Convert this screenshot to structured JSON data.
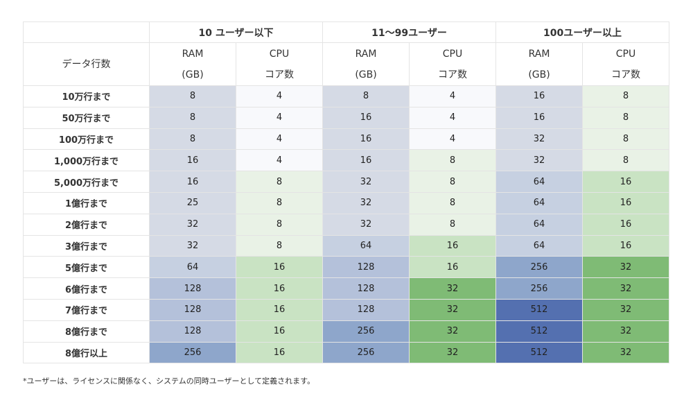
{
  "table": {
    "corner_label": "",
    "row_header_title": "データ行数",
    "groups": [
      "10 ユーザー以下",
      "11～99ユーザー",
      "100ユーザー以上"
    ],
    "ram_label": "RAM",
    "ram_unit": "(GB)",
    "cpu_label": "CPU",
    "cpu_unit": "コア数",
    "rows": [
      {
        "label": "10万行まで",
        "values": [
          "8",
          "4",
          "8",
          "4",
          "16",
          "8"
        ]
      },
      {
        "label": "50万行まで",
        "values": [
          "8",
          "4",
          "16",
          "4",
          "16",
          "8"
        ]
      },
      {
        "label": "100万行まで",
        "values": [
          "8",
          "4",
          "16",
          "4",
          "32",
          "8"
        ]
      },
      {
        "label": "1,000万行まで",
        "values": [
          "16",
          "4",
          "16",
          "8",
          "32",
          "8"
        ]
      },
      {
        "label": "5,000万行まで",
        "values": [
          "16",
          "8",
          "32",
          "8",
          "64",
          "16"
        ]
      },
      {
        "label": "1億行まで",
        "values": [
          "25",
          "8",
          "32",
          "8",
          "64",
          "16"
        ]
      },
      {
        "label": "2億行まで",
        "values": [
          "32",
          "8",
          "32",
          "8",
          "64",
          "16"
        ]
      },
      {
        "label": "3億行まで",
        "values": [
          "32",
          "8",
          "64",
          "16",
          "64",
          "16"
        ]
      },
      {
        "label": "5億行まで",
        "values": [
          "64",
          "16",
          "128",
          "16",
          "256",
          "32"
        ]
      },
      {
        "label": "6億行まで",
        "values": [
          "128",
          "16",
          "128",
          "32",
          "256",
          "32"
        ]
      },
      {
        "label": "7億行まで",
        "values": [
          "128",
          "16",
          "128",
          "32",
          "512",
          "32"
        ]
      },
      {
        "label": "8億行まで",
        "values": [
          "128",
          "16",
          "256",
          "32",
          "512",
          "32"
        ]
      },
      {
        "label": "8億行以上",
        "values": [
          "256",
          "16",
          "256",
          "32",
          "512",
          "32"
        ]
      }
    ]
  },
  "colors": {
    "ram": {
      "8": "#d5dae5",
      "16": "#d5dae5",
      "25": "#d5dae5",
      "32": "#d5dae5",
      "64": "#c6d0e1",
      "128": "#b4c1da",
      "256": "#8ea6cb",
      "512": "#5470b0"
    },
    "cpu": {
      "4": "#f8f9fc",
      "8": "#e9f2e6",
      "16": "#c9e3c3",
      "32": "#7fbb75"
    }
  },
  "footnote": "*ユーザーは、ライセンスに関係なく、システムの同時ユーザーとして定義されます。"
}
